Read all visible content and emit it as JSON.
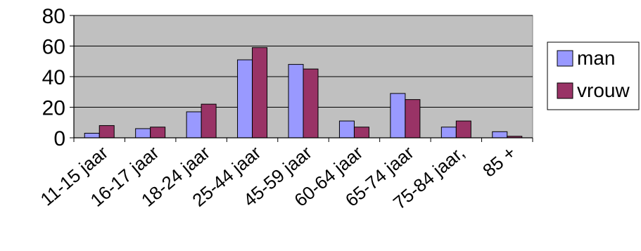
{
  "chart_data": {
    "type": "bar",
    "categories": [
      "11-15 jaar",
      "16-17 jaar",
      "18-24 jaar",
      "25-44 jaar",
      "45-59 jaar",
      "60-64 jaar",
      "65-74 jaar",
      "75-84 jaar,",
      "85 +"
    ],
    "series": [
      {
        "name": "man",
        "values": [
          3,
          6,
          17,
          51,
          48,
          11,
          29,
          7,
          4
        ],
        "color": "#9999ff"
      },
      {
        "name": "vrouw",
        "values": [
          8,
          7,
          22,
          59,
          45,
          7,
          25,
          11,
          1
        ],
        "color": "#993366"
      }
    ],
    "yticks": [
      "0",
      "20",
      "40",
      "60",
      "80"
    ],
    "ylim": [
      0,
      80
    ],
    "title": "",
    "xlabel": "",
    "ylabel": "",
    "grid": true,
    "legend_position": "right",
    "plot_background": "#c0c0c0"
  }
}
